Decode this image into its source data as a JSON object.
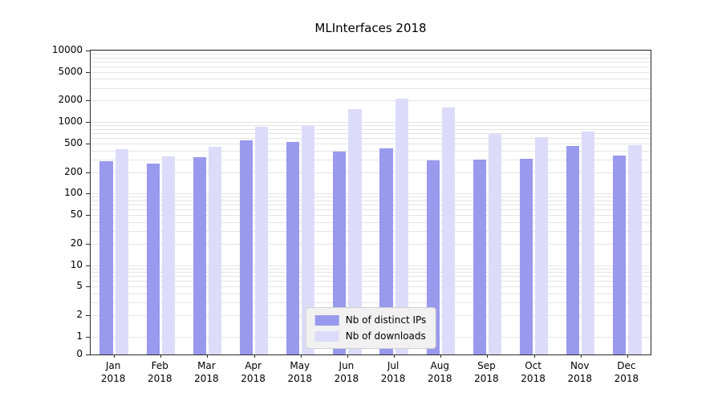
{
  "title": "MLInterfaces 2018",
  "colors": {
    "bar_distinct_ips": "#9999ee",
    "bar_downloads": "#dcdcfa",
    "grid": "#e4e4e4",
    "axis": "#2b2b2b",
    "legend_background": "#f1f1f1",
    "legend_border": "#cfcfcf"
  },
  "chart_data": {
    "type": "bar",
    "title": "MLInterfaces 2018",
    "categories": [
      "Jan",
      "Feb",
      "Mar",
      "Apr",
      "May",
      "Jun",
      "Jul",
      "Aug",
      "Sep",
      "Oct",
      "Nov",
      "Dec"
    ],
    "x_tick_second_line": "2018",
    "series": [
      {
        "name": "Nb of distinct IPs",
        "color": "#9999ee",
        "values": [
          280,
          260,
          320,
          550,
          530,
          390,
          430,
          290,
          295,
          310,
          465,
          340
        ]
      },
      {
        "name": "Nb of downloads",
        "color": "#dcdcfa",
        "values": [
          420,
          335,
          455,
          860,
          880,
          1500,
          2100,
          1600,
          680,
          620,
          730,
          480
        ]
      }
    ],
    "yscale": "symlog",
    "ylim": [
      0,
      10000
    ],
    "y_ticks": [
      0,
      1,
      2,
      5,
      10,
      20,
      50,
      100,
      200,
      500,
      1000,
      2000,
      5000,
      10000
    ],
    "grid": "horizontal",
    "legend_position": "lower-center"
  }
}
